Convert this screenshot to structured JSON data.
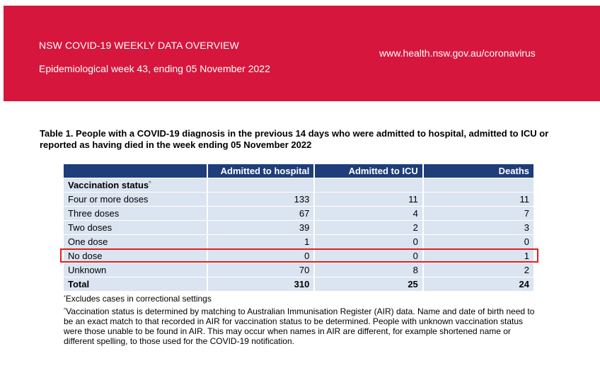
{
  "header": {
    "title": "NSW COVID-19 WEEKLY DATA OVERVIEW",
    "week": "Epidemiological week 43, ending 05 November 2022",
    "url": "www.health.nsw.gov.au/coronavirus",
    "background_color": "#d6163d"
  },
  "table": {
    "caption": "Table 1. People with a COVID-19 diagnosis in the previous 14 days who were admitted to hospital, admitted to ICU or reported as having died in the week ending 05 November 2022",
    "header_color": "#1f3d7a",
    "row_color": "#dbe4f1",
    "columns": [
      "",
      "Admitted to hospital",
      "Admitted to ICU",
      "Deaths"
    ],
    "section_label": "Vaccination status",
    "section_marker": "^",
    "rows": [
      {
        "label": "Four or more doses",
        "hospital": "133",
        "icu": "11",
        "deaths": "11"
      },
      {
        "label": "Three doses",
        "hospital": "67",
        "icu": "4",
        "deaths": "7"
      },
      {
        "label": "Two doses",
        "hospital": "39",
        "icu": "2",
        "deaths": "3"
      },
      {
        "label": "One dose",
        "hospital": "1",
        "icu": "0",
        "deaths": "0"
      },
      {
        "label": "No dose",
        "hospital": "0",
        "icu": "0",
        "deaths": "1"
      },
      {
        "label": "Unknown",
        "hospital": "70",
        "icu": "8",
        "deaths": "2"
      }
    ],
    "total": {
      "label": "Total",
      "hospital": "310",
      "icu": "25",
      "deaths": "24"
    },
    "highlight_color": "#e0201f"
  },
  "notes": {
    "note1_marker": "*",
    "note1": "Excludes cases in correctional settings",
    "note2_marker": "^",
    "note2": "Vaccination status is determined by matching to Australian Immunisation Register (AIR) data. Name and date of birth need to be an exact match to that recorded in AIR for vaccination status to be determined. People with unknown vaccination status were those unable to be found in AIR. This may occur when names in AIR are different, for example shortened name or different spelling, to those used for the COVID-19 notification."
  }
}
